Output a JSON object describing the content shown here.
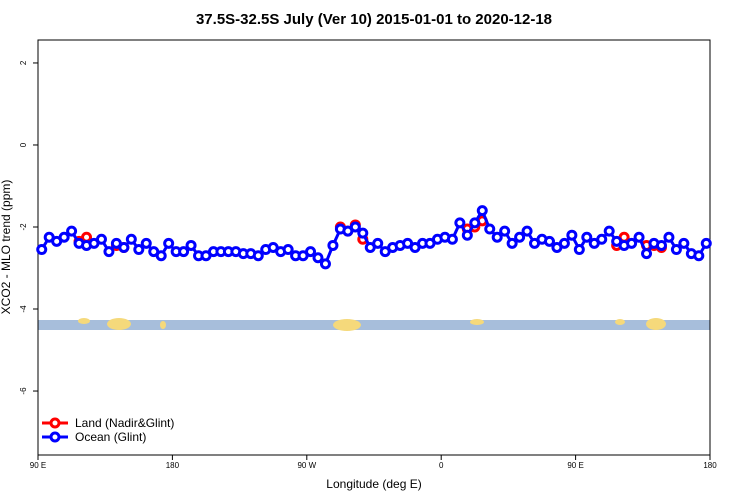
{
  "chart_data": {
    "type": "line",
    "title": "37.5S-32.5S July (Ver 10)   2015-01-01 to 2020-12-18",
    "xlabel": "Longitude (deg E)",
    "ylabel": "XCO2 - MLO trend (ppm)",
    "x": [
      92.5,
      97.5,
      102.5,
      107.5,
      112.5,
      117.5,
      122.5,
      127.5,
      132.5,
      137.5,
      142.5,
      147.5,
      152.5,
      157.5,
      162.5,
      167.5,
      172.5,
      177.5,
      182.5,
      187.5,
      192.5,
      197.5,
      202.5,
      207.5,
      212.5,
      217.5,
      222.5,
      227.5,
      232.5,
      237.5,
      242.5,
      247.5,
      252.5,
      257.5,
      262.5,
      267.5,
      272.5,
      277.5,
      282.5,
      287.5,
      292.5,
      297.5,
      302.5,
      307.5,
      312.5,
      317.5,
      322.5,
      327.5,
      332.5,
      337.5,
      342.5,
      347.5,
      352.5,
      357.5,
      362.5,
      367.5,
      372.5,
      377.5,
      382.5,
      387.5,
      392.5,
      397.5,
      402.5,
      407.5,
      412.5,
      417.5,
      422.5,
      427.5,
      432.5,
      437.5,
      442.5,
      447.5,
      452.5,
      457.5,
      462.5,
      467.5,
      472.5,
      477.5,
      482.5,
      487.5,
      492.5,
      497.5,
      502.5,
      507.5,
      512.5,
      517.5,
      522.5,
      527.5,
      532.5,
      537.5
    ],
    "series": [
      {
        "name": "Land (Nadir&Glint)",
        "color": "#ff0000",
        "values": [
          null,
          null,
          null,
          null,
          null,
          -2.35,
          -2.25,
          null,
          null,
          null,
          -2.45,
          -2.5,
          null,
          null,
          null,
          null,
          null,
          null,
          null,
          null,
          null,
          null,
          null,
          null,
          null,
          null,
          null,
          null,
          null,
          null,
          null,
          null,
          null,
          null,
          null,
          null,
          null,
          null,
          null,
          null,
          -2.0,
          -2.1,
          -1.95,
          -2.3,
          null,
          null,
          null,
          null,
          null,
          null,
          null,
          null,
          null,
          null,
          null,
          null,
          null,
          -2.05,
          -2.0,
          -1.85,
          null,
          null,
          null,
          null,
          null,
          null,
          null,
          null,
          null,
          null,
          null,
          null,
          null,
          null,
          null,
          null,
          null,
          -2.45,
          -2.25,
          null,
          null,
          -2.45,
          -2.45,
          -2.5,
          null,
          null,
          null,
          null,
          null,
          null
        ]
      },
      {
        "name": "Ocean (Glint)",
        "color": "#0000ff",
        "values": [
          -2.55,
          -2.25,
          -2.35,
          -2.25,
          -2.1,
          -2.4,
          -2.45,
          -2.4,
          -2.3,
          -2.6,
          -2.4,
          -2.5,
          -2.3,
          -2.55,
          -2.4,
          -2.6,
          -2.7,
          -2.4,
          -2.6,
          -2.6,
          -2.45,
          -2.7,
          -2.7,
          -2.6,
          -2.6,
          -2.6,
          -2.6,
          -2.65,
          -2.65,
          -2.7,
          -2.55,
          -2.5,
          -2.6,
          -2.55,
          -2.7,
          -2.7,
          -2.6,
          -2.75,
          -2.9,
          -2.45,
          -2.05,
          -2.1,
          -2.0,
          -2.15,
          -2.5,
          -2.4,
          -2.6,
          -2.5,
          -2.45,
          -2.4,
          -2.5,
          -2.4,
          -2.4,
          -2.3,
          -2.25,
          -2.3,
          -1.9,
          -2.2,
          -1.9,
          -1.6,
          -2.05,
          -2.25,
          -2.1,
          -2.4,
          -2.25,
          -2.1,
          -2.4,
          -2.3,
          -2.35,
          -2.5,
          -2.4,
          -2.2,
          -2.55,
          -2.25,
          -2.4,
          -2.3,
          -2.1,
          -2.35,
          -2.45,
          -2.4,
          -2.25,
          -2.65,
          -2.4,
          -2.45,
          -2.25,
          -2.55,
          -2.4,
          -2.65,
          -2.7,
          -2.4
        ]
      }
    ],
    "xlim": [
      90,
      540
    ],
    "xticks": [
      {
        "value": 90,
        "label": "90 E"
      },
      180,
      {
        "value": 270,
        "label": "90 W"
      },
      {
        "value": 360,
        "label": "0"
      },
      {
        "value": 450,
        "label": "90 E"
      },
      {
        "value": 540,
        "label": "180"
      }
    ],
    "ylim": [
      -7.56,
      2.56
    ],
    "yticks": [
      -6,
      -4,
      -2,
      0,
      2
    ],
    "legend": "lower left"
  }
}
